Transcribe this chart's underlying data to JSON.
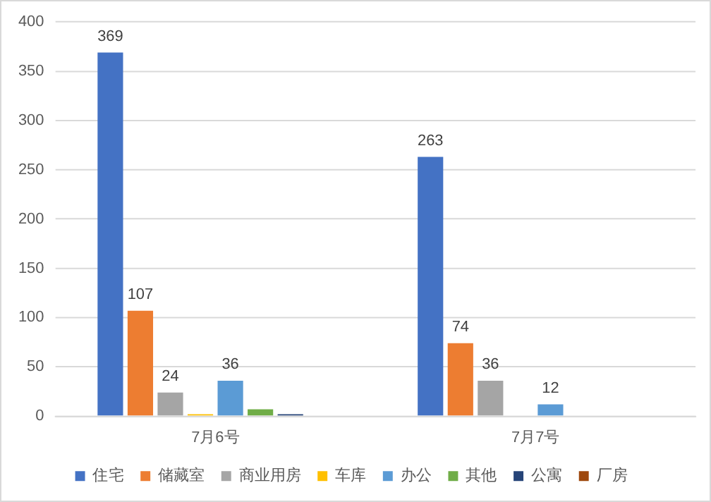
{
  "chart_data": {
    "type": "bar",
    "categories": [
      "7月6号",
      "7月7号"
    ],
    "series": [
      {
        "name": "住宅",
        "color": "#4472c4",
        "values": [
          369,
          263
        ],
        "value_labels": [
          "369",
          "263"
        ]
      },
      {
        "name": "储藏室",
        "color": "#ed7d31",
        "values": [
          107,
          74
        ],
        "value_labels": [
          "107",
          "74"
        ]
      },
      {
        "name": "商业用房",
        "color": "#a5a5a5",
        "values": [
          24,
          36
        ],
        "value_labels": [
          "24",
          "36"
        ]
      },
      {
        "name": "车库",
        "color": "#ffc000",
        "values": [
          2,
          null
        ],
        "value_labels": [
          null,
          null
        ]
      },
      {
        "name": "办公",
        "color": "#5b9bd5",
        "values": [
          36,
          12
        ],
        "value_labels": [
          "36",
          "12"
        ]
      },
      {
        "name": "其他",
        "color": "#70ad47",
        "values": [
          7,
          null
        ],
        "value_labels": [
          null,
          null
        ]
      },
      {
        "name": "公寓",
        "color": "#264478",
        "values": [
          2,
          null
        ],
        "value_labels": [
          null,
          null
        ]
      },
      {
        "name": "厂房",
        "color": "#9e480e",
        "values": [
          null,
          null
        ],
        "value_labels": [
          null,
          null
        ]
      }
    ],
    "ylim": [
      0,
      400
    ],
    "yticks": [
      0,
      50,
      100,
      150,
      200,
      250,
      300,
      350,
      400
    ],
    "grid": "y",
    "legend": "bottom"
  }
}
